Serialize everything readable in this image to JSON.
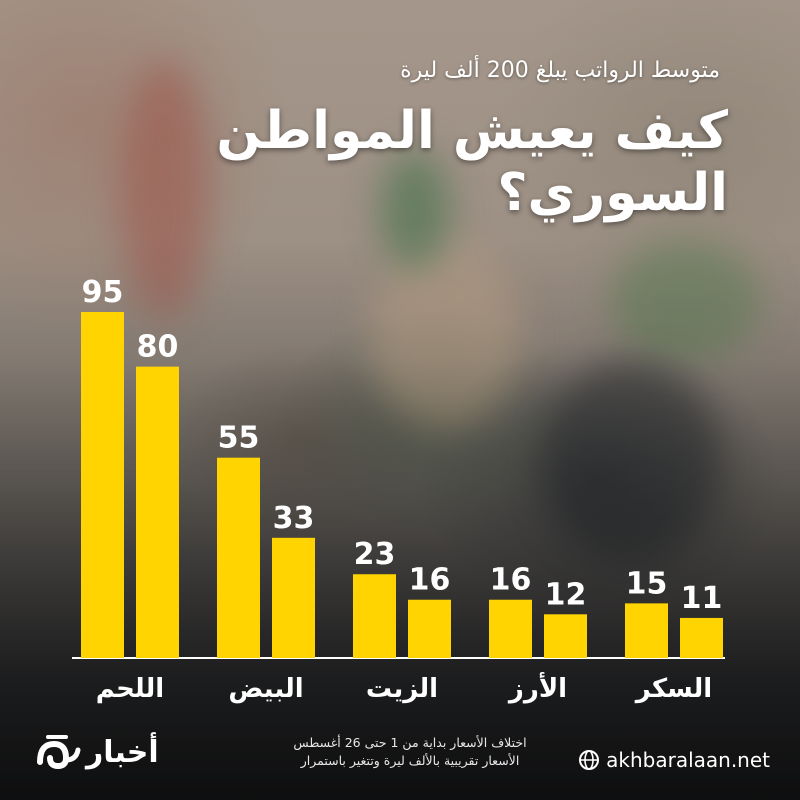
{
  "header": {
    "subtitle": "متوسط الرواتب يبلغ 200 ألف ليرة",
    "title": "كيف يعيش المواطن السوري؟"
  },
  "chart_data": {
    "type": "bar",
    "categories": [
      "اللحم",
      "البيض",
      "الزيت",
      "الأرز",
      "السكر"
    ],
    "series": [
      {
        "values": [
          95,
          55,
          23,
          16,
          15
        ]
      },
      {
        "values": [
          80,
          33,
          16,
          12,
          11
        ]
      }
    ],
    "value_labels": true,
    "ylim": [
      0,
      100
    ],
    "bar_color": "#ffd400",
    "grid": false
  },
  "footer": {
    "note_line1": "اختلاف الأسعار بداية من 1 حتى 26 أغسطس",
    "note_line2": "الأسعار تقريبية بالألف ليرة وتتغير باستمرار",
    "website": "akhbaralaan.net",
    "logo_text": "أخبار",
    "logo_mark_text": "الآن"
  },
  "icons": [
    "globe-icon",
    "logo-mark-icon"
  ]
}
